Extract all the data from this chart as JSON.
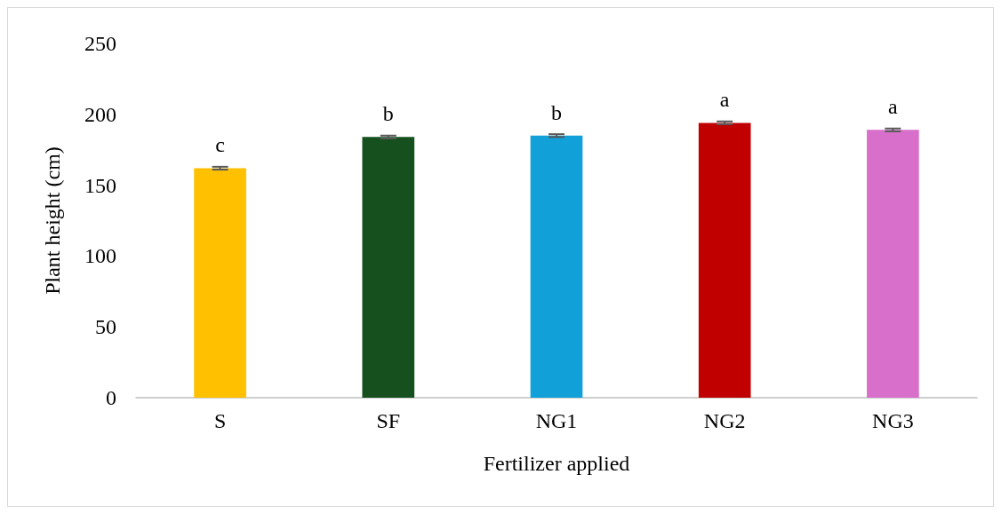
{
  "chart_data": {
    "type": "bar",
    "xlabel": "Fertilizer applied",
    "ylabel": "Plant height (cm)",
    "categories": [
      "S",
      "SF",
      "NG1",
      "NG2",
      "NG3"
    ],
    "values": [
      162,
      184,
      185,
      194,
      189
    ],
    "colors": [
      "#ffc000",
      "#16501e",
      "#11a0d8",
      "#c00000",
      "#d76fcb"
    ],
    "errors": [
      1,
      1,
      1,
      1,
      1
    ],
    "ylim": [
      0,
      250
    ],
    "yticks": [
      0,
      50,
      100,
      150,
      200,
      250
    ],
    "grid": false,
    "annotations": [
      {
        "text": "c",
        "x": "S",
        "y": 162
      },
      {
        "text": "b",
        "x": "SF",
        "y": 184
      },
      {
        "text": "b",
        "x": "NG1",
        "y": 185
      },
      {
        "text": "a",
        "x": "NG2",
        "y": 194
      },
      {
        "text": "a",
        "x": "NG3",
        "y": 189
      }
    ]
  }
}
